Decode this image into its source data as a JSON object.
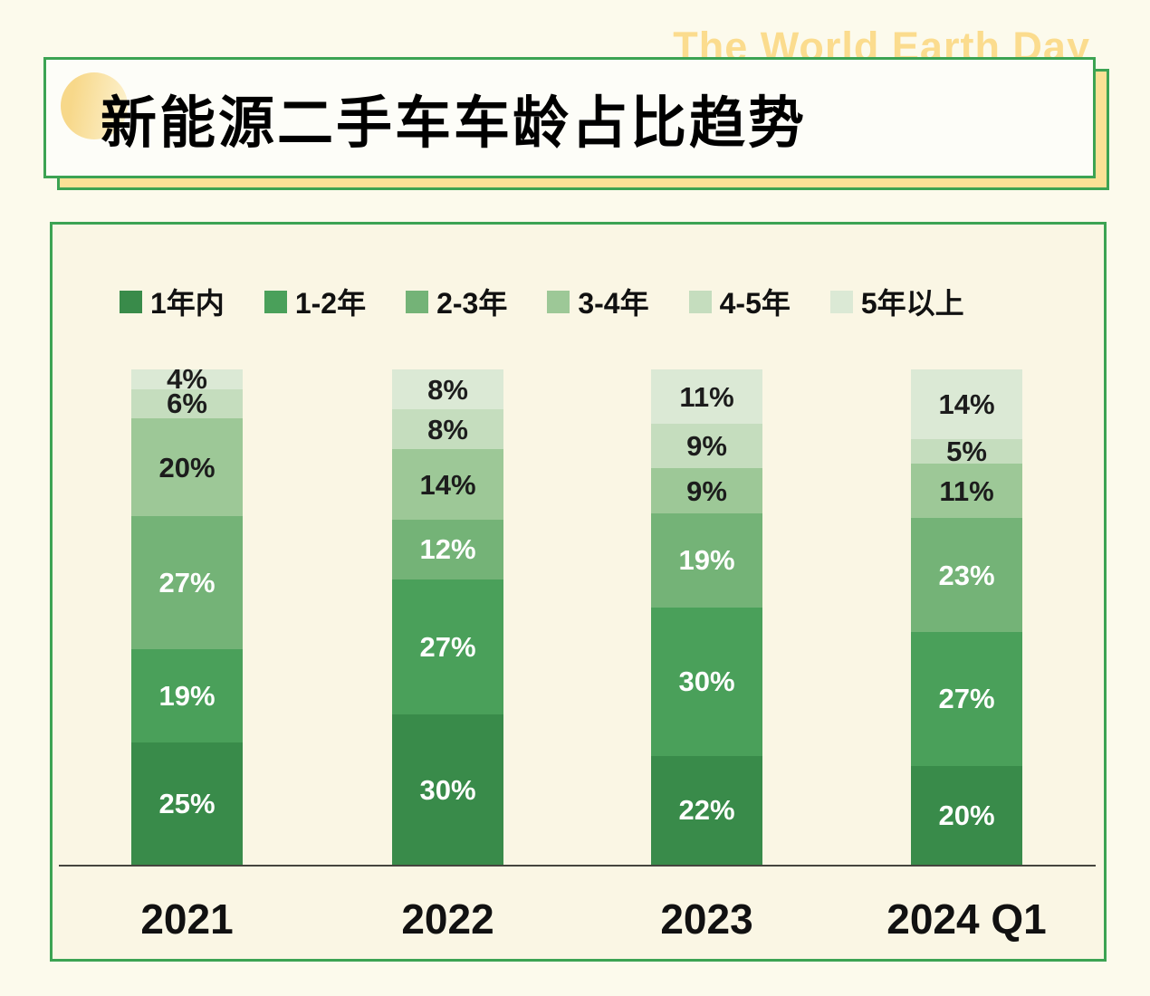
{
  "header": {
    "watermark": "The World Earth Day",
    "title": "新能源二手车车龄占比趋势"
  },
  "colors": {
    "page_bg": "#fcfaec",
    "panel_bg": "#faf6e4",
    "green_border": "#3ca353",
    "title_box_bg": "#fdfdf8",
    "shadow_box_bg": "#fae196",
    "watermark_text": "#fbdc8e",
    "axis_line": "#45453e"
  },
  "chart_data": {
    "type": "bar",
    "stacked": true,
    "percent_normalized": true,
    "grid": false,
    "legend_position": "top",
    "title": "新能源二手车车龄占比趋势",
    "value_suffix": "%",
    "categories": [
      "2021",
      "2022",
      "2023",
      "2024 Q1"
    ],
    "series": [
      {
        "name": "1年内",
        "color": "#398b4a",
        "label_color": "#ffffff",
        "values": [
          25,
          30,
          22,
          20
        ]
      },
      {
        "name": "1-2年",
        "color": "#4aa05a",
        "label_color": "#ffffff",
        "values": [
          19,
          27,
          30,
          27
        ]
      },
      {
        "name": "2-3年",
        "color": "#74b377",
        "label_color": "#ffffff",
        "values": [
          27,
          12,
          19,
          23
        ]
      },
      {
        "name": "3-4年",
        "color": "#9dc897",
        "label_color": "#1c1c1c",
        "values": [
          20,
          14,
          9,
          11
        ]
      },
      {
        "name": "4-5年",
        "color": "#c5ddbe",
        "label_color": "#1c1c1c",
        "values": [
          6,
          8,
          9,
          5
        ]
      },
      {
        "name": "5年以上",
        "color": "#dbe9d5",
        "label_color": "#1c1c1c",
        "values": [
          4,
          8,
          11,
          14
        ]
      }
    ]
  }
}
